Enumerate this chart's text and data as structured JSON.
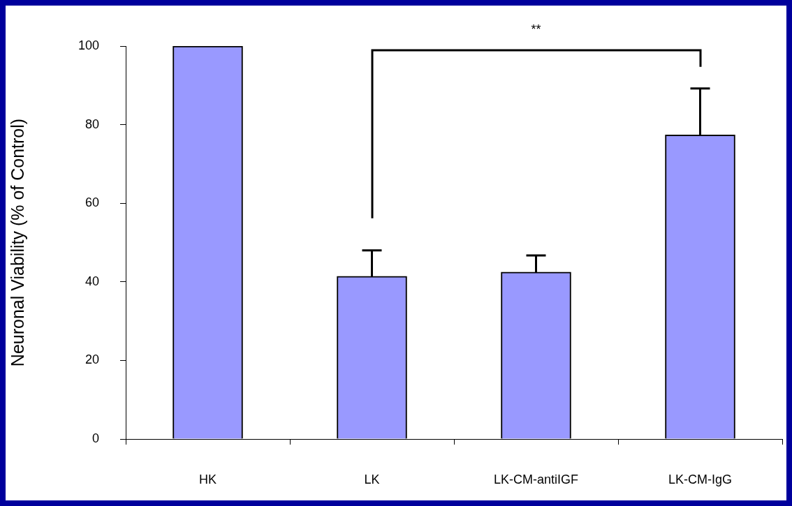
{
  "chart_data": {
    "type": "bar",
    "ylabel": "Neuronal Viability (% of Control)",
    "categories": [
      "HK",
      "LK",
      "LK-CM-antiIGF",
      "LK-CM-IgG"
    ],
    "values": [
      100,
      41.4,
      42.5,
      77.4
    ],
    "errors": [
      null,
      6.6,
      4.2,
      11.8
    ],
    "color": "#9999ff",
    "ylim": [
      0,
      100
    ],
    "yticks": [
      0,
      20,
      40,
      60,
      80,
      100
    ],
    "grid": false,
    "legend": false,
    "annotations": [
      "**"
    ]
  }
}
